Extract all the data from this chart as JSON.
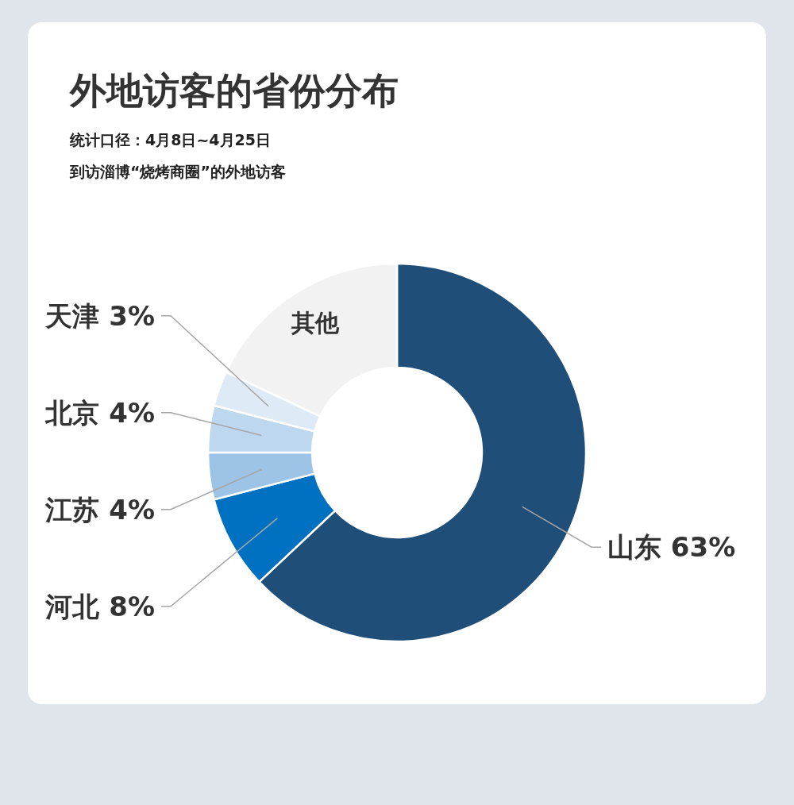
{
  "chart_data": {
    "type": "donut",
    "title": "外地访客的省份分布",
    "subtitle": "统计口径：4月8日~4月25日",
    "annotations": [
      "到访淄博“烧烤商圈”的外地访客"
    ],
    "categories": [
      "山东",
      "河北",
      "江苏",
      "北京",
      "天津",
      "其他"
    ],
    "values": [
      63,
      8,
      4,
      4,
      3,
      18
    ],
    "value_labels": [
      "63%",
      "8%",
      "4%",
      "4%",
      "3%",
      null
    ],
    "colors": [
      "#1f4e79",
      "#0070c0",
      "#9dc3e6",
      "#bdd7ee",
      "#deebf7",
      "#f2f2f2"
    ],
    "legend": false
  }
}
